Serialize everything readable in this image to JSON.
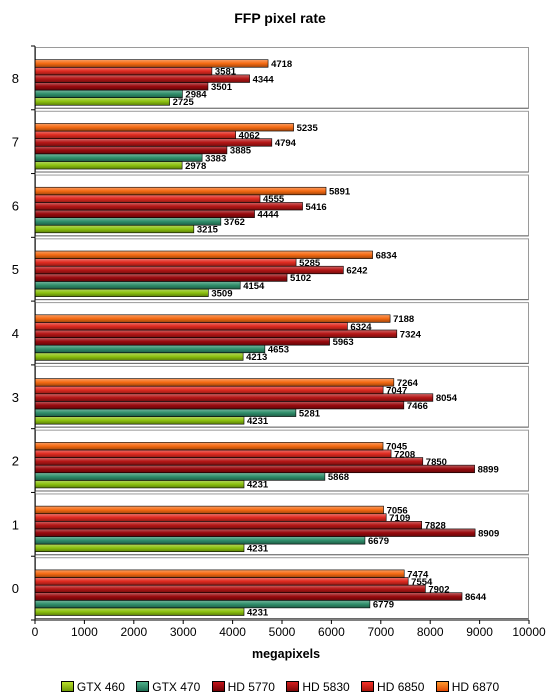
{
  "chart_data": {
    "type": "bar",
    "orientation": "horizontal",
    "title": "FFP pixel rate",
    "xlabel": "megapixels",
    "ylabel": "",
    "xlim": [
      0,
      10000
    ],
    "x_ticks": [
      0,
      1000,
      2000,
      3000,
      4000,
      5000,
      6000,
      7000,
      8000,
      9000,
      10000
    ],
    "categories": [
      "8",
      "7",
      "6",
      "5",
      "4",
      "3",
      "2",
      "1",
      "0"
    ],
    "series": [
      {
        "name": "GTX 460",
        "color": "#8cc20f",
        "values": [
          2725,
          2978,
          3215,
          3509,
          4213,
          4231,
          4231,
          4231,
          4231
        ]
      },
      {
        "name": "GTX 470",
        "color": "#2f8f6b",
        "values": [
          2984,
          3383,
          3762,
          4154,
          4653,
          5281,
          5868,
          6679,
          6779
        ]
      },
      {
        "name": "HD 5770",
        "color": "#9a0a0e",
        "values": [
          3501,
          3885,
          4444,
          5102,
          5963,
          7466,
          8899,
          8909,
          8644
        ]
      },
      {
        "name": "HD 5830",
        "color": "#b51616",
        "values": [
          4344,
          4794,
          5416,
          6242,
          7324,
          8054,
          7850,
          7828,
          7902
        ]
      },
      {
        "name": "HD 6850",
        "color": "#e02a20",
        "values": [
          3581,
          4062,
          4555,
          5285,
          6324,
          7047,
          7208,
          7109,
          7554
        ]
      },
      {
        "name": "HD 6870",
        "color": "#f56a12",
        "values": [
          4718,
          5235,
          5891,
          6834,
          7188,
          7264,
          7045,
          7056,
          7474
        ]
      }
    ],
    "grid": false,
    "legend_position": "bottom"
  }
}
